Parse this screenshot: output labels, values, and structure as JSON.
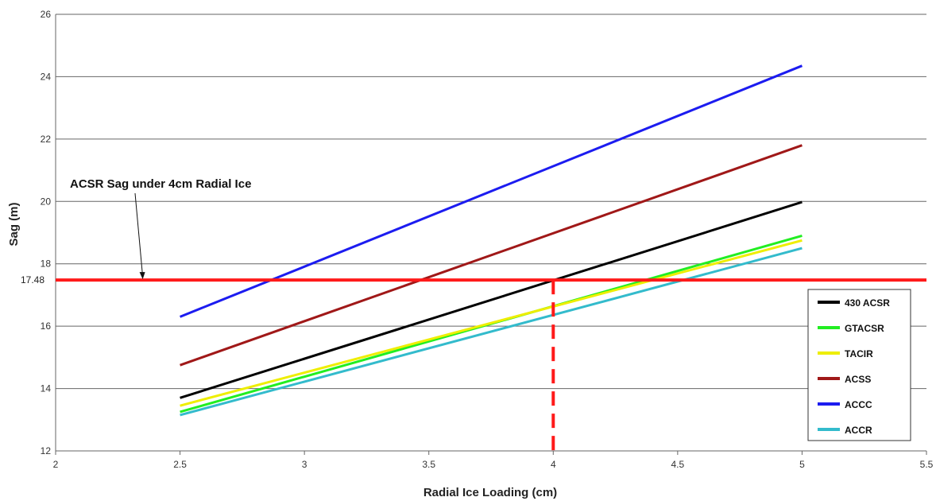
{
  "chart_data": {
    "type": "line",
    "title": "",
    "xlabel": "Radial Ice Loading (cm)",
    "ylabel": "Sag (m)",
    "xlim": [
      2,
      5.5
    ],
    "ylim": [
      12,
      26
    ],
    "xticks": [
      "2",
      "2.5",
      "3",
      "3.5",
      "4",
      "4.5",
      "5",
      "5.5"
    ],
    "yticks": [
      "12",
      "14",
      "16",
      "18",
      "20",
      "22",
      "24",
      "26"
    ],
    "grid": "horizontal",
    "legend_position": "bottom-right",
    "series": [
      {
        "name": "430 ACSR",
        "color": "#000000",
        "x": [
          2.5,
          5
        ],
        "y": [
          13.7,
          19.98
        ]
      },
      {
        "name": "GTACSR",
        "color": "#22ee22",
        "x": [
          2.5,
          5
        ],
        "y": [
          13.25,
          18.9
        ]
      },
      {
        "name": "TACIR",
        "color": "#eeee00",
        "x": [
          2.5,
          5
        ],
        "y": [
          13.45,
          18.75
        ]
      },
      {
        "name": "ACSS",
        "color": "#a01818",
        "x": [
          2.5,
          5
        ],
        "y": [
          14.75,
          21.8
        ]
      },
      {
        "name": "ACCC",
        "color": "#1c1cf0",
        "x": [
          2.5,
          5
        ],
        "y": [
          16.3,
          24.35
        ]
      },
      {
        "name": "ACCR",
        "color": "#33bbcc",
        "x": [
          2.5,
          5
        ],
        "y": [
          13.15,
          18.5
        ]
      }
    ],
    "reference_line": {
      "y": 17.48,
      "label": "17.48",
      "color": "#ff1a1a"
    },
    "reference_vertical": {
      "x": 4,
      "y_top": 17.48,
      "color": "#ff1a1a"
    },
    "annotation": {
      "text": "ACSR Sag under 4cm Radial Ice",
      "points_to_x": 2.35,
      "points_to_y": 17.48
    }
  }
}
